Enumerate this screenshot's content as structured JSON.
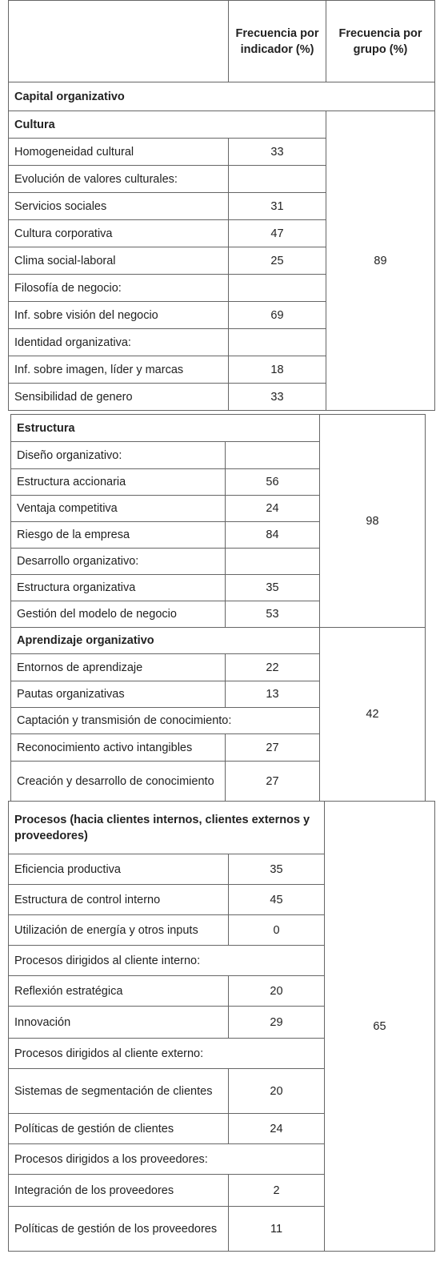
{
  "header": {
    "indicator": "Frecuencia por indicador (%)",
    "group": "Frecuencia por grupo (%)"
  },
  "section": "Capital organizativo",
  "groups": [
    {
      "name": "Cultura",
      "frequency": 89,
      "rows": [
        {
          "label": "Homogeneidad cultural",
          "value": 33
        },
        {
          "label": "Evolución de valores culturales:"
        },
        {
          "label": "Servicios sociales",
          "value": 31
        },
        {
          "label": "Cultura corporativa",
          "value": 47
        },
        {
          "label": "Clima social-laboral",
          "value": 25
        },
        {
          "label": "Filosofía de negocio:"
        },
        {
          "label": "Inf. sobre visión del negocio",
          "value": 69
        },
        {
          "label": "Identidad organizativa:"
        },
        {
          "label": "Inf. sobre imagen, líder y marcas",
          "value": 18
        },
        {
          "label": "Sensibilidad de genero",
          "value": 33
        }
      ]
    },
    {
      "name": "Estructura",
      "frequency": 98,
      "rows": [
        {
          "label": "Diseño organizativo:"
        },
        {
          "label": "Estructura accionaria",
          "value": 56
        },
        {
          "label": "Ventaja competitiva",
          "value": 24
        },
        {
          "label": "Riesgo de la empresa",
          "value": 84
        },
        {
          "label": "Desarrollo organizativo:"
        },
        {
          "label": "Estructura organizativa",
          "value": 35
        },
        {
          "label": "Gestión del modelo de negocio",
          "value": 53
        }
      ]
    },
    {
      "name": "Aprendizaje organizativo",
      "frequency": 42,
      "rows": [
        {
          "label": "Entornos de aprendizaje",
          "value": 22
        },
        {
          "label": "Pautas organizativas",
          "value": 13
        },
        {
          "label": "Captación y transmisión de conocimiento:"
        },
        {
          "label": "Reconocimiento activo intangibles",
          "value": 27
        },
        {
          "label": "Creación y desarrollo de conocimiento",
          "value": 27
        }
      ]
    },
    {
      "name": "Procesos (hacia clientes internos, clientes externos y proveedores)",
      "frequency": 65,
      "rows": [
        {
          "label": "Eficiencia productiva",
          "value": 35
        },
        {
          "label": "Estructura de control interno",
          "value": 45
        },
        {
          "label": "Utilización de energía y otros inputs",
          "value": 0
        },
        {
          "label": "Procesos dirigidos al cliente interno:"
        },
        {
          "label": "Reflexión estratégica",
          "value": 20
        },
        {
          "label": "Innovación",
          "value": 29
        },
        {
          "label": "Procesos dirigidos al cliente externo:"
        },
        {
          "label": "Sistemas de segmentación de clientes",
          "value": 20
        },
        {
          "label": "Políticas de gestión de clientes",
          "value": 24
        },
        {
          "label": "Procesos dirigidos a los proveedores:"
        },
        {
          "label": "Integración de los proveedores",
          "value": 2
        },
        {
          "label": "Políticas de gestión de los proveedores",
          "value": 11
        }
      ]
    }
  ]
}
